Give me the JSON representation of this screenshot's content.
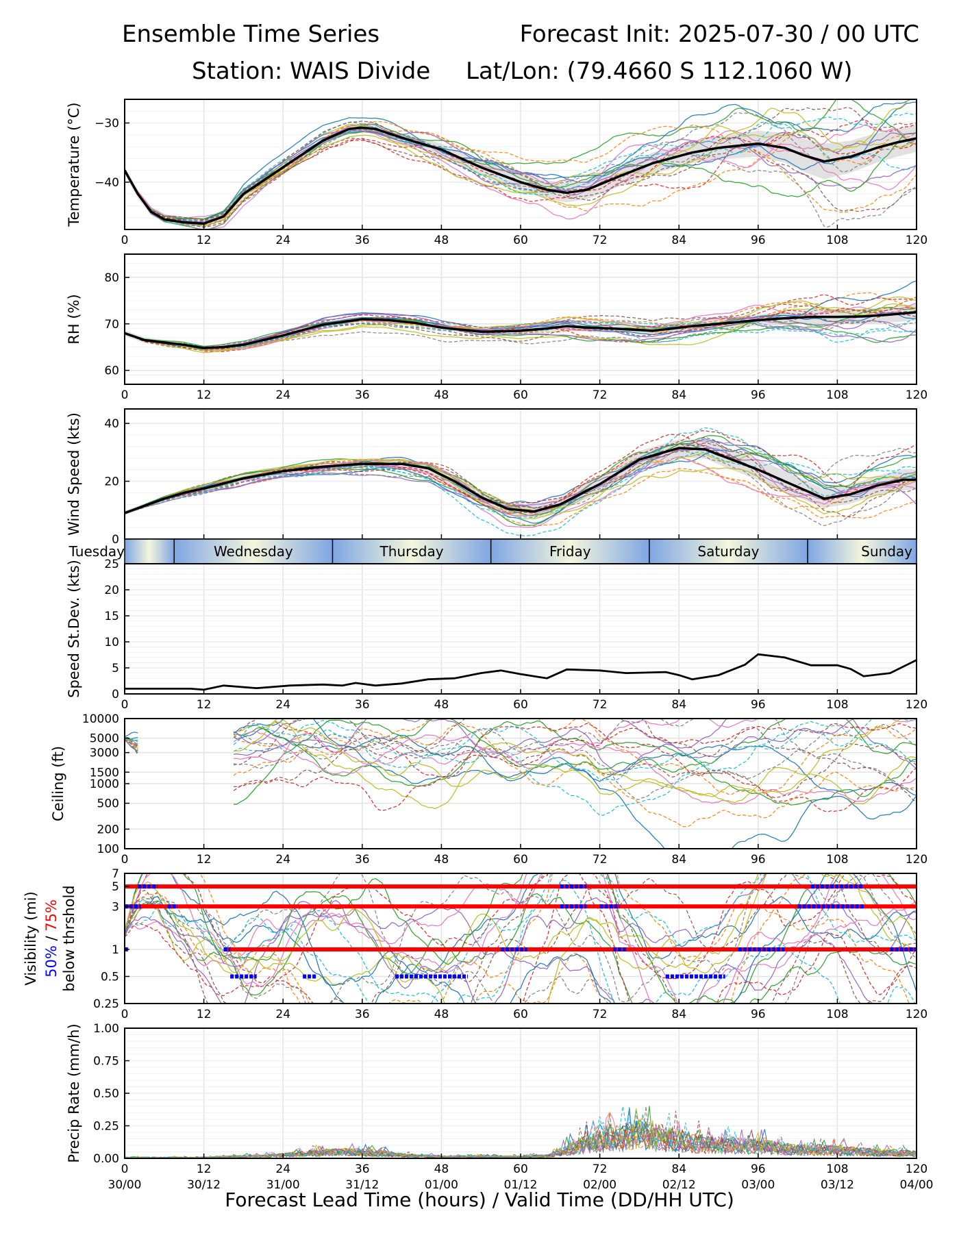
{
  "header": {
    "title_left": "Ensemble Time Series",
    "title_right": "Forecast Init: 2025-07-30 / 00 UTC",
    "station": "Station: WAIS Divide",
    "latlon": "Lat/Lon: (79.4660 S 112.1060 W)"
  },
  "xaxis": {
    "label": "Forecast Lead Time (hours) / Valid Time (DD/HH UTC)",
    "ticks": [
      0,
      12,
      24,
      36,
      48,
      60,
      72,
      84,
      96,
      108,
      120
    ],
    "valid_time_labels": [
      "30/00",
      "30/12",
      "31/00",
      "31/12",
      "01/00",
      "01/12",
      "02/00",
      "02/12",
      "03/00",
      "03/12",
      "04/00"
    ],
    "xlim": [
      0,
      120
    ]
  },
  "days": [
    {
      "name": "Tuesday",
      "start_hour": 0,
      "end_hour": 7.5
    },
    {
      "name": "Wednesday",
      "start_hour": 7.5,
      "end_hour": 31.5
    },
    {
      "name": "Thursday",
      "start_hour": 31.5,
      "end_hour": 55.5
    },
    {
      "name": "Friday",
      "start_hour": 55.5,
      "end_hour": 79.5
    },
    {
      "name": "Saturday",
      "start_hour": 79.5,
      "end_hour": 103.5
    },
    {
      "name": "Sunday",
      "start_hour": 103.5,
      "end_hour": 120
    }
  ],
  "colors": {
    "mean": "#000000",
    "spread": "#d9d9d9",
    "threshold_50": "#0000ff",
    "threshold_75": "#ff0000",
    "members": [
      "#1f77b4",
      "#ff7f0e",
      "#2ca02c",
      "#d62728",
      "#9467bd",
      "#8c564b",
      "#e377c2",
      "#7f7f7f",
      "#bcbd22",
      "#17becf"
    ],
    "day_edge": "#7fa6e3",
    "day_center": "#f4f6dc"
  },
  "chart_data": [
    {
      "id": "temperature",
      "type": "line",
      "ylabel": "Temperature (°C)",
      "ylim": [
        -48,
        -26
      ],
      "yticks": [
        -30,
        -40
      ],
      "grid": true,
      "x": [
        0,
        2,
        4,
        6,
        9,
        12,
        15,
        18,
        24,
        30,
        34,
        36,
        38,
        42,
        48,
        54,
        60,
        64,
        67,
        70,
        75,
        80,
        86,
        90,
        96,
        100,
        103,
        106,
        110,
        114,
        117,
        120
      ],
      "mean": [
        -38,
        -42,
        -45,
        -46.3,
        -46.8,
        -47,
        -45.8,
        -42,
        -37.5,
        -33,
        -31,
        -30.8,
        -31,
        -32.5,
        -34.5,
        -37.5,
        -40,
        -41.3,
        -41.8,
        -41.3,
        -39,
        -36.8,
        -35,
        -34.2,
        -33.5,
        -34.2,
        -35.5,
        -36.5,
        -35.7,
        -34.2,
        -33.3,
        -32.6
      ],
      "spread": [
        0.6,
        0.7,
        0.6,
        0.5,
        0.5,
        0.6,
        0.7,
        0.8,
        0.7,
        0.6,
        0.5,
        0.5,
        0.6,
        0.8,
        1,
        1.3,
        1.5,
        1.6,
        1.6,
        1.6,
        1.7,
        1.8,
        1.8,
        1.9,
        2.2,
        2.5,
        2.8,
        3,
        2.7,
        2.5,
        2.4,
        2.3
      ],
      "member_count": 20,
      "member_noise": 2.2
    },
    {
      "id": "rh",
      "type": "line",
      "ylabel": "RH (%)",
      "ylim": [
        57,
        85
      ],
      "yticks": [
        60,
        70,
        80
      ],
      "grid": true,
      "x": [
        0,
        3,
        6,
        9,
        12,
        15,
        18,
        24,
        30,
        36,
        40,
        44,
        48,
        54,
        60,
        64,
        67,
        70,
        74,
        80,
        86,
        90,
        96,
        100,
        104,
        108,
        112,
        116,
        120
      ],
      "mean": [
        68,
        66.5,
        66,
        65.5,
        64.8,
        65,
        65.5,
        67.5,
        69.8,
        71,
        70.8,
        70.2,
        69.2,
        68.3,
        68.5,
        69,
        69.5,
        69.2,
        69,
        68.5,
        69.5,
        70,
        70.8,
        71.2,
        71.5,
        71.5,
        71.6,
        72,
        72.5
      ],
      "spread": [
        0.6,
        0.6,
        0.6,
        0.5,
        0.5,
        0.5,
        0.5,
        0.6,
        0.6,
        0.5,
        0.6,
        0.6,
        0.6,
        0.6,
        0.7,
        0.8,
        0.9,
        0.9,
        0.9,
        0.9,
        1,
        1.1,
        1.2,
        1.4,
        1.5,
        1.6,
        1.6,
        1.7,
        1.8
      ],
      "member_count": 20,
      "member_noise": 1.4
    },
    {
      "id": "wind",
      "type": "line",
      "ylabel": "Wind Speed (kts)",
      "ylim": [
        0,
        45
      ],
      "yticks": [
        0,
        20,
        40
      ],
      "grid": true,
      "x": [
        0,
        3,
        6,
        9,
        12,
        18,
        24,
        30,
        36,
        42,
        46,
        50,
        54,
        58,
        62,
        66,
        72,
        78,
        84,
        88,
        92,
        96,
        100,
        104,
        106,
        110,
        114,
        118,
        120
      ],
      "mean": [
        9,
        11.5,
        14,
        16,
        17.5,
        21,
        23.5,
        25,
        26,
        26,
        24.5,
        20,
        14.5,
        10.5,
        9.5,
        12,
        19,
        27.5,
        31.5,
        31,
        27.5,
        24,
        20,
        16,
        14,
        15.5,
        18.5,
        20.5,
        20.5
      ],
      "spread": [
        0.8,
        0.8,
        0.9,
        1,
        1,
        1.1,
        1.1,
        1.2,
        1.3,
        1.5,
        1.7,
        2,
        2.2,
        2.2,
        2.3,
        2.5,
        2.8,
        3,
        3,
        3.2,
        3.5,
        3.6,
        3.6,
        3.4,
        3.2,
        3.2,
        3.4,
        3.6,
        3.6
      ],
      "member_count": 20,
      "member_noise": 3.0
    },
    {
      "id": "stdev",
      "type": "line",
      "ylabel": "Speed St.Dev. (kts)",
      "ylim": [
        0,
        25
      ],
      "yticks": [
        0,
        5,
        10,
        15,
        20,
        25
      ],
      "grid": true,
      "x": [
        0,
        5,
        10,
        12,
        15,
        20,
        25,
        30,
        33,
        35,
        38,
        42,
        46,
        50,
        54,
        57,
        60,
        64,
        67,
        72,
        76,
        82,
        84,
        86,
        90,
        94,
        96,
        100,
        104,
        108,
        110,
        112,
        116,
        120
      ],
      "values": [
        1.0,
        1.0,
        1.0,
        0.8,
        1.6,
        1.1,
        1.6,
        1.8,
        1.6,
        2.1,
        1.6,
        2.0,
        2.8,
        3.0,
        4.0,
        4.5,
        3.8,
        3.0,
        4.7,
        4.5,
        4.0,
        4.2,
        3.6,
        2.8,
        3.6,
        5.6,
        7.6,
        7.0,
        5.5,
        5.5,
        4.8,
        3.4,
        4.0,
        6.5
      ]
    },
    {
      "id": "ceiling",
      "type": "line",
      "ylabel": "Ceiling (ft)",
      "ylim": [
        100,
        10000
      ],
      "scale": "log",
      "yticks": [
        100,
        200,
        500,
        1000,
        1500,
        3000,
        5000,
        10000
      ],
      "grid": true,
      "x": [
        0,
        2,
        4,
        10,
        14,
        16,
        20,
        24,
        30,
        36,
        40,
        44,
        48,
        54,
        60,
        66,
        70,
        72,
        76,
        80,
        84,
        90,
        96,
        100,
        104,
        108,
        112,
        116,
        120
      ],
      "median": [
        5000,
        4000,
        null,
        null,
        null,
        3000,
        3200,
        3300,
        3500,
        3400,
        3000,
        2600,
        2800,
        3800,
        4500,
        4500,
        4200,
        3000,
        2700,
        2500,
        2500,
        2600,
        3200,
        3500,
        4500,
        4500,
        4000,
        3800,
        3800
      ],
      "member_count": 20
    },
    {
      "id": "visibility",
      "type": "line",
      "ylabel": "Visibility (mi)",
      "ylabel_extra": [
        "50%",
        " / ",
        "75%",
        "below thrshold"
      ],
      "ylim": [
        0.25,
        7
      ],
      "scale": "log",
      "yticks": [
        0.25,
        0.5,
        1,
        3,
        5,
        7
      ],
      "grid": true,
      "x": [
        0,
        3,
        5,
        8,
        12,
        15,
        18,
        24,
        30,
        36,
        42,
        48,
        54,
        60,
        64,
        66,
        70,
        72,
        75,
        80,
        86,
        90,
        94,
        98,
        104,
        108,
        114,
        120
      ],
      "median": [
        1.5,
        4,
        5,
        3,
        1.5,
        0.8,
        0.5,
        0.6,
        0.7,
        0.65,
        0.55,
        0.5,
        0.55,
        0.9,
        2,
        4,
        5,
        3,
        1,
        0.6,
        0.5,
        0.7,
        1.5,
        3,
        4,
        4,
        2,
        1
      ],
      "member_count": 20,
      "thresholds_75": [
        {
          "level": 5,
          "from": 0,
          "to": 120
        },
        {
          "level": 3,
          "from": 0,
          "to": 120
        },
        {
          "level": 1,
          "from": 15,
          "to": 120
        }
      ],
      "thresholds_50": [
        {
          "level": 5,
          "from": 2,
          "to": 5
        },
        {
          "level": 3,
          "from": 0,
          "to": 2.5
        },
        {
          "level": 3,
          "from": 6.5,
          "to": 8
        },
        {
          "level": 1,
          "from": 0,
          "to": 0.5
        },
        {
          "level": 1,
          "from": 15,
          "to": 16
        },
        {
          "level": 1,
          "from": 57,
          "to": 61
        },
        {
          "level": 1,
          "from": 74,
          "to": 76
        },
        {
          "level": 1,
          "from": 93,
          "to": 100
        },
        {
          "level": 1,
          "from": 116,
          "to": 120
        },
        {
          "level": 0.5,
          "from": 16,
          "to": 20
        },
        {
          "level": 0.5,
          "from": 27,
          "to": 29
        },
        {
          "level": 0.5,
          "from": 41,
          "to": 52
        },
        {
          "level": 0.5,
          "from": 82,
          "to": 91
        },
        {
          "level": 3,
          "from": 66,
          "to": 70
        },
        {
          "level": 5,
          "from": 66,
          "to": 70
        },
        {
          "level": 3,
          "from": 72,
          "to": 75
        },
        {
          "level": 3,
          "from": 102,
          "to": 112
        },
        {
          "level": 5,
          "from": 104,
          "to": 112
        }
      ]
    },
    {
      "id": "precip",
      "type": "line",
      "ylabel": "Precip Rate (mm/h)",
      "ylim": [
        0,
        1
      ],
      "yticks": [
        0,
        0.25,
        0.5,
        0.75,
        1
      ],
      "yticklabels": [
        "0.00",
        "0.25",
        "0.50",
        "0.75",
        "1.00"
      ],
      "grid": true,
      "x": [
        0,
        12,
        16,
        22,
        26,
        30,
        34,
        38,
        42,
        48,
        60,
        64,
        66,
        70,
        74,
        78,
        82,
        86,
        90,
        96,
        100,
        104,
        108,
        112,
        116,
        120
      ],
      "envelope": [
        0.01,
        0.01,
        0.02,
        0.03,
        0.05,
        0.07,
        0.08,
        0.07,
        0.04,
        0.02,
        0.02,
        0.03,
        0.08,
        0.18,
        0.25,
        0.3,
        0.25,
        0.2,
        0.17,
        0.15,
        0.12,
        0.1,
        0.1,
        0.08,
        0.07,
        0.06
      ],
      "member_count": 20
    }
  ]
}
